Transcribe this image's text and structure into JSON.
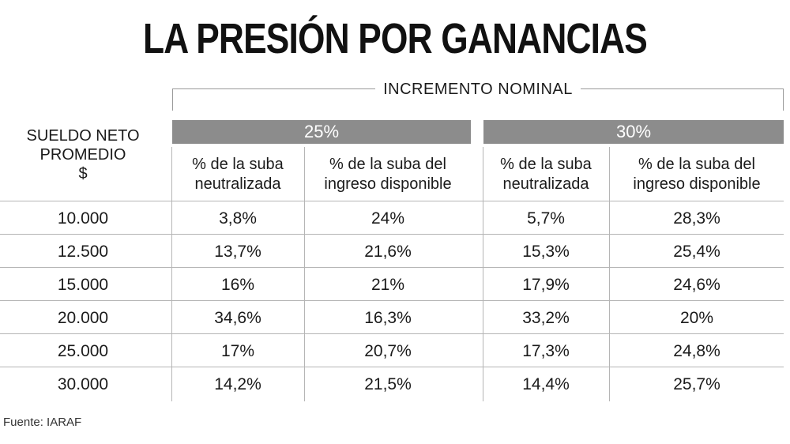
{
  "title": "LA PRESIÓN POR GANANCIAS",
  "chart_data": {
    "type": "table",
    "title": "LA PRESIÓN POR GANANCIAS",
    "group_header": "INCREMENTO NOMINAL",
    "row_header": [
      "SUELDO NETO",
      "PROMEDIO",
      "$"
    ],
    "groups": [
      {
        "label": "25%",
        "columns": [
          [
            "% de la suba",
            "neutralizada"
          ],
          [
            "% de la suba del",
            "ingreso disponible"
          ]
        ]
      },
      {
        "label": "30%",
        "columns": [
          [
            "% de la suba",
            "neutralizada"
          ],
          [
            "% de la suba del",
            "ingreso disponible"
          ]
        ]
      }
    ],
    "rows": [
      {
        "sueldo": "10.000",
        "values": [
          "3,8%",
          "24%",
          "5,7%",
          "28,3%"
        ]
      },
      {
        "sueldo": "12.500",
        "values": [
          "13,7%",
          "21,6%",
          "15,3%",
          "25,4%"
        ]
      },
      {
        "sueldo": "15.000",
        "values": [
          "16%",
          "21%",
          "17,9%",
          "24,6%"
        ]
      },
      {
        "sueldo": "20.000",
        "values": [
          "34,6%",
          "16,3%",
          "33,2%",
          "20%"
        ]
      },
      {
        "sueldo": "25.000",
        "values": [
          "17%",
          "20,7%",
          "17,3%",
          "24,8%"
        ]
      },
      {
        "sueldo": "30.000",
        "values": [
          "14,2%",
          "21,5%",
          "14,4%",
          "25,7%"
        ]
      }
    ]
  },
  "source": "Fuente: IARAF",
  "colors": {
    "band": "#8c8c8c",
    "rule": "#b5b5b5",
    "text": "#1b1b1b"
  }
}
